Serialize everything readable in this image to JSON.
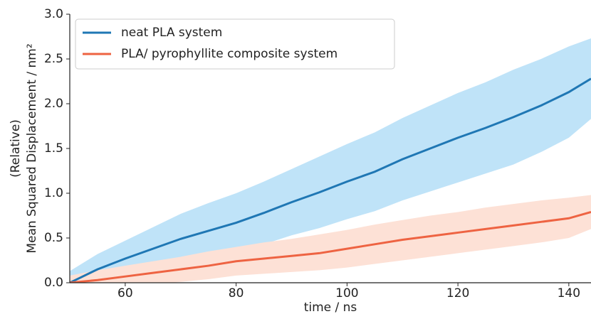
{
  "chart_data": {
    "type": "line",
    "xlabel": "time / ns",
    "ylabel": [
      "(Relative)",
      "Mean Squared Displacement / nm²"
    ],
    "x": [
      50,
      55,
      60,
      65,
      70,
      75,
      80,
      85,
      90,
      95,
      100,
      105,
      110,
      115,
      120,
      125,
      130,
      135,
      140,
      144
    ],
    "series": [
      {
        "name": "neat PLA system",
        "color": "#1f77b4",
        "band_color": "#bfe3f8",
        "values": [
          0,
          0.15,
          0.27,
          0.38,
          0.49,
          0.58,
          0.67,
          0.78,
          0.9,
          1.01,
          1.13,
          1.24,
          1.38,
          1.5,
          1.62,
          1.73,
          1.85,
          1.98,
          2.13,
          2.28
        ],
        "upper": [
          0.13,
          0.32,
          0.47,
          0.62,
          0.77,
          0.89,
          1.0,
          1.13,
          1.27,
          1.41,
          1.55,
          1.68,
          1.84,
          1.98,
          2.12,
          2.24,
          2.38,
          2.5,
          2.64,
          2.73
        ],
        "lower": [
          -0.13,
          -0.02,
          0.07,
          0.14,
          0.21,
          0.27,
          0.34,
          0.43,
          0.53,
          0.61,
          0.71,
          0.8,
          0.92,
          1.02,
          1.12,
          1.22,
          1.32,
          1.46,
          1.62,
          1.83
        ]
      },
      {
        "name": "PLA/ pyrophyllite composite system",
        "color": "#ee6342",
        "band_color": "#fde1d6",
        "values": [
          0,
          0.03,
          0.07,
          0.11,
          0.15,
          0.19,
          0.24,
          0.27,
          0.3,
          0.33,
          0.38,
          0.43,
          0.48,
          0.52,
          0.56,
          0.6,
          0.64,
          0.68,
          0.72,
          0.79
        ],
        "upper": [
          0.08,
          0.14,
          0.19,
          0.24,
          0.29,
          0.35,
          0.4,
          0.45,
          0.49,
          0.54,
          0.59,
          0.65,
          0.7,
          0.75,
          0.79,
          0.84,
          0.88,
          0.92,
          0.95,
          0.98
        ],
        "lower": [
          -0.08,
          -0.07,
          -0.05,
          -0.02,
          0.01,
          0.04,
          0.08,
          0.1,
          0.12,
          0.14,
          0.17,
          0.21,
          0.25,
          0.29,
          0.33,
          0.37,
          0.41,
          0.45,
          0.5,
          0.6
        ]
      }
    ],
    "xlim": [
      50,
      144
    ],
    "xticks": [
      60,
      80,
      100,
      120,
      140
    ],
    "ylim": [
      0,
      3
    ],
    "yticks": [
      {
        "value": 0,
        "label": "0.0"
      },
      {
        "value": 0.5,
        "label": "0.5"
      },
      {
        "value": 1,
        "label": "1.0"
      },
      {
        "value": 1.5,
        "label": "1.5"
      },
      {
        "value": 2,
        "label": "2.0"
      },
      {
        "value": 2.5,
        "label": "2.5"
      },
      {
        "value": 3,
        "label": "3.0"
      }
    ],
    "legend": "upper left",
    "grid": false
  }
}
